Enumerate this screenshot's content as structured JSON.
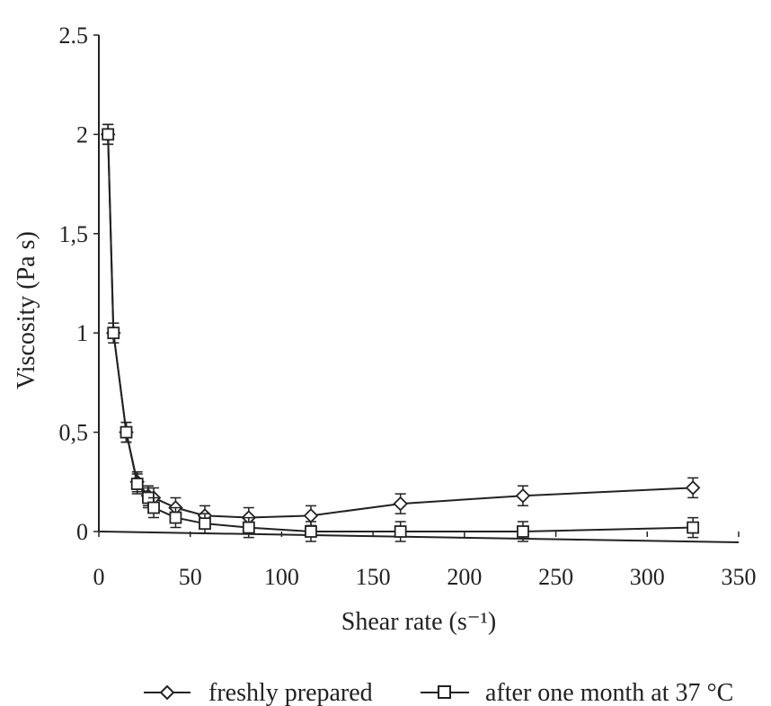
{
  "chart_data": {
    "type": "line",
    "xlabel": "Shear rate (s⁻¹)",
    "ylabel": "Viscosity (Pa s)",
    "xlim": [
      0,
      350
    ],
    "ylim": [
      0,
      2.5
    ],
    "x_ticks": [
      "0",
      "50",
      "100",
      "150",
      "200",
      "250",
      "300",
      "350"
    ],
    "y_ticks": [
      "0",
      "0,5",
      "1",
      "1,5",
      "2",
      "2.5"
    ],
    "grid": false,
    "legend_position": "bottom",
    "series": [
      {
        "name": "freshly prepared",
        "marker": "diamond",
        "x": [
          5,
          8,
          15,
          21,
          27,
          30,
          42,
          58,
          82,
          116,
          165,
          232,
          325
        ],
        "y": [
          2.0,
          1.0,
          0.5,
          0.25,
          0.18,
          0.17,
          0.12,
          0.08,
          0.07,
          0.08,
          0.14,
          0.18,
          0.22
        ]
      },
      {
        "name": "after one month at 37 °C",
        "marker": "square",
        "x": [
          5,
          8,
          15,
          21,
          27,
          30,
          42,
          58,
          82,
          116,
          165,
          232,
          325
        ],
        "y": [
          2.0,
          1.0,
          0.5,
          0.24,
          0.17,
          0.12,
          0.07,
          0.04,
          0.02,
          0.0,
          0.0,
          0.0,
          0.02
        ]
      }
    ]
  }
}
